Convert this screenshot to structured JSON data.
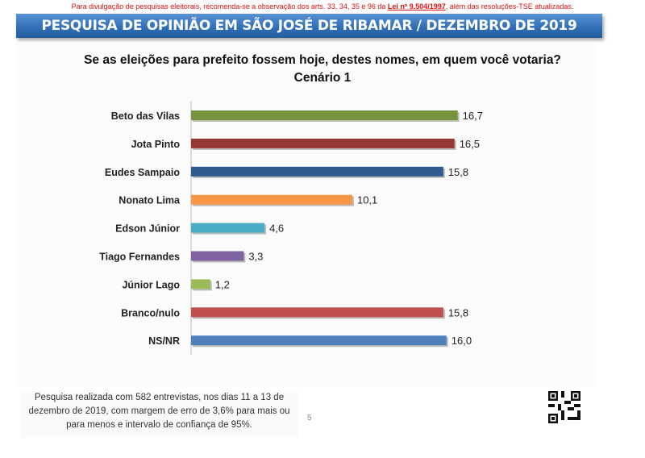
{
  "notice": {
    "text_before": "Para divulgação de pesquisas eleitorais, recomenda-se a observação dos arts. 33, 34, 35 e 96 da ",
    "law": "Lei nº 9.504/1997",
    "text_after": ", além das resoluções-TSE atualizadas."
  },
  "banner": "PESQUISA DE OPINIÃO EM SÃO JOSÉ DE RIBAMAR / DEZEMBRO DE 2019",
  "chart_data": {
    "type": "bar",
    "orientation": "horizontal",
    "title": "Se as eleições para prefeito fossem hoje, destes nomes, em quem você votaria?",
    "subtitle": "Cenário 1",
    "categories": [
      "Beto das Vilas",
      "Jota Pinto",
      "Eudes Sampaio",
      "Nonato Lima",
      "Edson Júnior",
      "Tiago Fernandes",
      "Júnior Lago",
      "Branco/nulo",
      "NS/NR"
    ],
    "values": [
      16.7,
      16.5,
      15.8,
      10.1,
      4.6,
      3.3,
      1.2,
      15.8,
      16.0
    ],
    "labels": [
      "16,7",
      "16,5",
      "15,8",
      "10,1",
      "4,6",
      "3,3",
      "1,2",
      "15,8",
      "16,0"
    ],
    "colors": [
      "#76923c",
      "#953735",
      "#2f5a8f",
      "#f79646",
      "#4bacc6",
      "#8064a2",
      "#9bbb59",
      "#c0504d",
      "#4f81bd"
    ],
    "grid": false
  },
  "footer": "Pesquisa realizada com 582 entrevistas, nos dias 11 a 13 de dezembro de 2019, com margem de erro de 3,6% para mais ou para menos e intervalo de confiança de 95%.",
  "page_number": "5"
}
